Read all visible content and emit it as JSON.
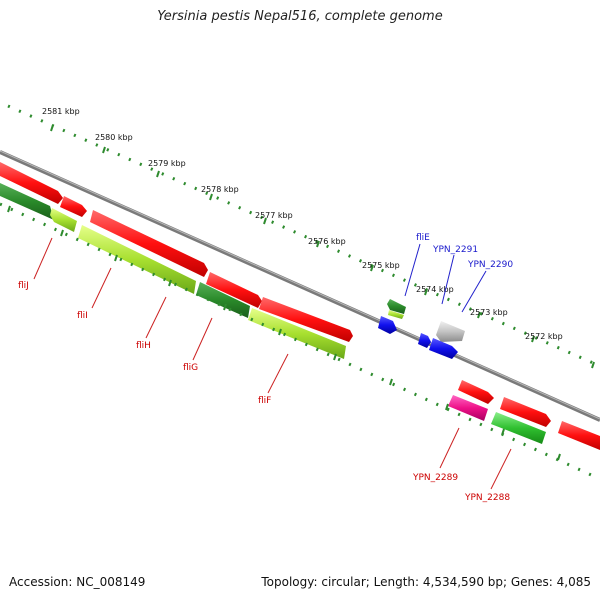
{
  "title": "Yersinia pestis Nepal516, complete genome",
  "footer": {
    "accession": "Accession: NC_008149",
    "summary": "Topology: circular; Length: 4,534,590 bp; Genes: 4,085"
  },
  "colors": {
    "backbone": "#8a8a8a",
    "tick": "#2e8b2e",
    "forward_gene": "#ff1a1a",
    "reverse_gene": "#2f8f2f",
    "reverse_gene_light": "#9ad830",
    "blue_gene": "#1010ee",
    "grey_gene": "#bbbbbb",
    "pink_gene": "#ee1188",
    "label_red": "#cc0000",
    "label_blue": "#1a1acc"
  },
  "kbp_labels": [
    {
      "id": "kbp-2581",
      "text": "2581 kbp"
    },
    {
      "id": "kbp-2580",
      "text": "2580 kbp"
    },
    {
      "id": "kbp-2579",
      "text": "2579 kbp"
    },
    {
      "id": "kbp-2578",
      "text": "2578 kbp"
    },
    {
      "id": "kbp-2577",
      "text": "2577 kbp"
    },
    {
      "id": "kbp-2576",
      "text": "2576 kbp"
    },
    {
      "id": "kbp-2575",
      "text": "2575 kbp"
    },
    {
      "id": "kbp-2574",
      "text": "2574 kbp"
    },
    {
      "id": "kbp-2573",
      "text": "2573 kbp"
    },
    {
      "id": "kbp-2572",
      "text": "2572 kbp"
    }
  ],
  "gene_labels": [
    {
      "id": "fliJ",
      "text": "fliJ"
    },
    {
      "id": "fliI",
      "text": "fliI"
    },
    {
      "id": "fliH",
      "text": "fliH"
    },
    {
      "id": "fliG",
      "text": "fliG"
    },
    {
      "id": "fliF",
      "text": "fliF"
    },
    {
      "id": "fliE",
      "text": "fliE"
    },
    {
      "id": "YPN_2291",
      "text": "YPN_2291"
    },
    {
      "id": "YPN_2290",
      "text": "YPN_2290"
    },
    {
      "id": "YPN_2289",
      "text": "YPN_2289"
    },
    {
      "id": "YPN_2288",
      "text": "YPN_2288"
    }
  ]
}
